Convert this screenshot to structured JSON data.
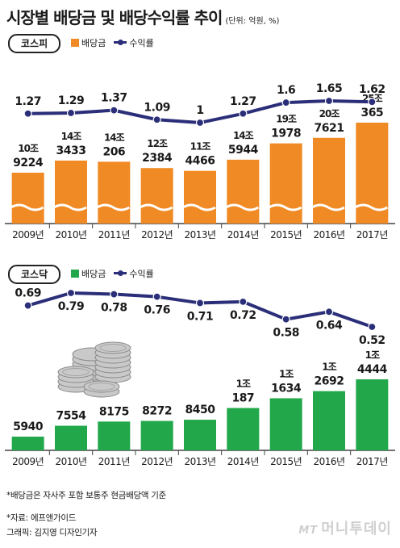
{
  "header": {
    "title": "시장별 배당금 및 배당수익률 추이",
    "unit": "(단위: 억원, %)"
  },
  "legend": {
    "dividend": "배당금",
    "yield": "수익률"
  },
  "colors": {
    "kospi_bar": "#f08a24",
    "kosdaq_bar": "#22a84a",
    "line": "#2b2e78",
    "axis": "#444444"
  },
  "chart_data": [
    {
      "type": "bar",
      "panel": "코스피",
      "categories": [
        "2009년",
        "2010년",
        "2011년",
        "2012년",
        "2013년",
        "2014년",
        "2015년",
        "2016년",
        "2017년"
      ],
      "series": [
        {
          "name": "배당금",
          "values": [
            109224,
            143433,
            140206,
            122384,
            114466,
            145944,
            191978,
            207621,
            250365
          ],
          "labels": [
            [
              "10조",
              "9224"
            ],
            [
              "14조",
              "3433"
            ],
            [
              "14조",
              "206"
            ],
            [
              "12조",
              "2384"
            ],
            [
              "11조",
              "4466"
            ],
            [
              "14조",
              "5944"
            ],
            [
              "19조",
              "1978"
            ],
            [
              "20조",
              "7621"
            ],
            [
              "25조",
              "365"
            ]
          ]
        },
        {
          "name": "수익률",
          "type": "line",
          "values": [
            1.27,
            1.29,
            1.37,
            1.09,
            1,
            1.27,
            1.6,
            1.65,
            1.62
          ],
          "labels": [
            "1.27",
            "1.29",
            "1.37",
            "1.09",
            "1",
            "1.27",
            "1.6",
            "1.65",
            "1.62"
          ]
        }
      ],
      "axis_break": true
    },
    {
      "type": "bar",
      "panel": "코스닥",
      "categories": [
        "2009년",
        "2010년",
        "2011년",
        "2012년",
        "2013년",
        "2014년",
        "2015년",
        "2016년",
        "2017년"
      ],
      "series": [
        {
          "name": "배당금",
          "values": [
            5940,
            7554,
            8175,
            8272,
            8450,
            10187,
            11634,
            12692,
            14444
          ],
          "labels": [
            [
              "",
              "5940"
            ],
            [
              "",
              "7554"
            ],
            [
              "",
              "8175"
            ],
            [
              "",
              "8272"
            ],
            [
              "",
              "8450"
            ],
            [
              "1조",
              "187"
            ],
            [
              "1조",
              "1634"
            ],
            [
              "1조",
              "2692"
            ],
            [
              "1조",
              "4444"
            ]
          ]
        },
        {
          "name": "수익률",
          "type": "line",
          "values": [
            0.69,
            0.79,
            0.78,
            0.76,
            0.71,
            0.72,
            0.58,
            0.64,
            0.52
          ],
          "labels": [
            "0.69",
            "0.79",
            "0.78",
            "0.76",
            "0.71",
            "0.72",
            "0.58",
            "0.64",
            "0.52"
          ]
        }
      ],
      "axis_break": false
    }
  ],
  "footnotes": {
    "note": "*배당금은 자사주 포함 보통주 현금배당액 기준",
    "source": "*자료: 에프앤가이드",
    "credit": "그래픽: 김지영 디자인기자"
  },
  "watermark": {
    "mt": "MT",
    "name": "머니투데이"
  }
}
